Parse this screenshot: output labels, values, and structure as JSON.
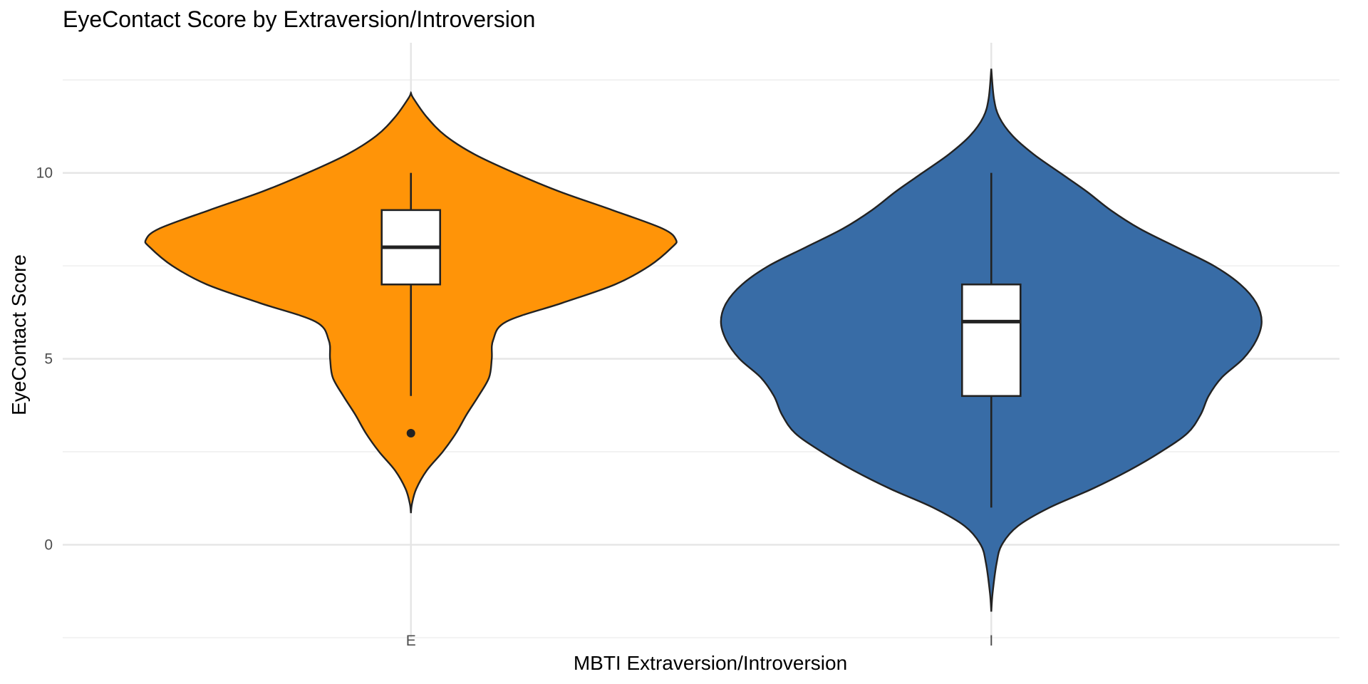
{
  "chart_data": {
    "type": "violin",
    "title": "EyeContact Score by Extraversion/Introversion",
    "xlabel": "MBTI Extraversion/Introversion",
    "ylabel": "EyeContact Score",
    "categories": [
      "E",
      "I"
    ],
    "ylim": [
      -2.5,
      13.5
    ],
    "yticks": [
      0,
      5,
      10
    ],
    "grid": true,
    "legend": "none",
    "colors": {
      "E": "#FF9408",
      "I": "#386CA6"
    },
    "violins": [
      {
        "category": "E",
        "color": "#FF9408",
        "y_min": 0.85,
        "y_max": 12.15,
        "density_profile": [
          [
            0.85,
            0.0
          ],
          [
            1.1,
            0.004
          ],
          [
            1.5,
            0.02
          ],
          [
            2.0,
            0.06
          ],
          [
            2.5,
            0.12
          ],
          [
            3.0,
            0.17
          ],
          [
            3.5,
            0.21
          ],
          [
            4.0,
            0.255
          ],
          [
            4.5,
            0.295
          ],
          [
            5.0,
            0.305
          ],
          [
            5.5,
            0.31
          ],
          [
            6.0,
            0.36
          ],
          [
            6.5,
            0.57
          ],
          [
            7.0,
            0.77
          ],
          [
            7.5,
            0.9
          ],
          [
            8.0,
            0.985
          ],
          [
            8.2,
            1.0
          ],
          [
            8.5,
            0.95
          ],
          [
            9.0,
            0.76
          ],
          [
            9.5,
            0.56
          ],
          [
            10.0,
            0.39
          ],
          [
            10.5,
            0.24
          ],
          [
            11.0,
            0.13
          ],
          [
            11.5,
            0.06
          ],
          [
            12.0,
            0.01
          ],
          [
            12.15,
            0.0
          ]
        ],
        "box": {
          "q1": 7,
          "median": 8,
          "q3": 9,
          "whisker_low": 4,
          "whisker_high": 10,
          "outliers": [
            3
          ]
        }
      },
      {
        "category": "I",
        "color": "#386CA6",
        "y_min": -1.8,
        "y_max": 12.8,
        "density_profile": [
          [
            -1.8,
            0.0
          ],
          [
            -1.3,
            0.005
          ],
          [
            -0.5,
            0.02
          ],
          [
            0.0,
            0.04
          ],
          [
            0.5,
            0.1
          ],
          [
            1.0,
            0.22
          ],
          [
            1.5,
            0.38
          ],
          [
            2.0,
            0.52
          ],
          [
            2.5,
            0.64
          ],
          [
            3.0,
            0.74
          ],
          [
            3.5,
            0.79
          ],
          [
            4.0,
            0.82
          ],
          [
            4.5,
            0.87
          ],
          [
            5.0,
            0.95
          ],
          [
            5.5,
            1.0
          ],
          [
            6.0,
            1.02
          ],
          [
            6.5,
            1.0
          ],
          [
            7.0,
            0.94
          ],
          [
            7.5,
            0.84
          ],
          [
            8.0,
            0.7
          ],
          [
            8.5,
            0.56
          ],
          [
            9.0,
            0.45
          ],
          [
            9.5,
            0.36
          ],
          [
            10.0,
            0.26
          ],
          [
            10.5,
            0.16
          ],
          [
            11.0,
            0.08
          ],
          [
            11.5,
            0.03
          ],
          [
            12.0,
            0.01
          ],
          [
            12.8,
            0.0
          ]
        ],
        "box": {
          "q1": 4,
          "median": 6,
          "q3": 7,
          "whisker_low": 1,
          "whisker_high": 10,
          "outliers": []
        }
      }
    ]
  }
}
